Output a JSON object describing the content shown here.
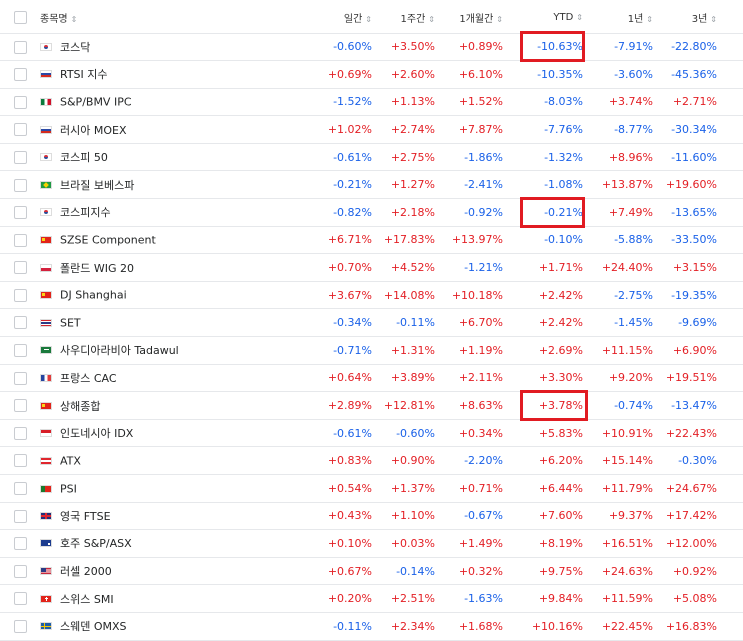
{
  "headers": {
    "name": "종목명",
    "d1": "일간",
    "w1": "1주간",
    "m1": "1개월간",
    "ytd": "YTD",
    "y1": "1년",
    "y3": "3년",
    "sort_icon": "sort-arrows-icon"
  },
  "rows": [
    {
      "flag": "kr",
      "name": "코스닥",
      "d1": "-0.60%",
      "w1": "+3.50%",
      "m1": "+0.89%",
      "ytd": "-10.63%",
      "y1": "-7.91%",
      "y3": "-22.80%"
    },
    {
      "flag": "ru",
      "name": "RTSI 지수",
      "d1": "+0.69%",
      "w1": "+2.60%",
      "m1": "+6.10%",
      "ytd": "-10.35%",
      "y1": "-3.60%",
      "y3": "-45.36%"
    },
    {
      "flag": "mx",
      "name": "S&P/BMV IPC",
      "d1": "-1.52%",
      "w1": "+1.13%",
      "m1": "+1.52%",
      "ytd": "-8.03%",
      "y1": "+3.74%",
      "y3": "+2.71%"
    },
    {
      "flag": "ru",
      "name": "러시아 MOEX",
      "d1": "+1.02%",
      "w1": "+2.74%",
      "m1": "+7.87%",
      "ytd": "-7.76%",
      "y1": "-8.77%",
      "y3": "-30.34%"
    },
    {
      "flag": "kr",
      "name": "코스피 50",
      "d1": "-0.61%",
      "w1": "+2.75%",
      "m1": "-1.86%",
      "ytd": "-1.32%",
      "y1": "+8.96%",
      "y3": "-11.60%"
    },
    {
      "flag": "br",
      "name": "브라질 보베스파",
      "d1": "-0.21%",
      "w1": "+1.27%",
      "m1": "-2.41%",
      "ytd": "-1.08%",
      "y1": "+13.87%",
      "y3": "+19.60%"
    },
    {
      "flag": "kr",
      "name": "코스피지수",
      "d1": "-0.82%",
      "w1": "+2.18%",
      "m1": "-0.92%",
      "ytd": "-0.21%",
      "y1": "+7.49%",
      "y3": "-13.65%"
    },
    {
      "flag": "cn",
      "name": "SZSE Component",
      "d1": "+6.71%",
      "w1": "+17.83%",
      "m1": "+13.97%",
      "ytd": "-0.10%",
      "y1": "-5.88%",
      "y3": "-33.50%"
    },
    {
      "flag": "pl",
      "name": "폴란드 WIG 20",
      "d1": "+0.70%",
      "w1": "+4.52%",
      "m1": "-1.21%",
      "ytd": "+1.71%",
      "y1": "+24.40%",
      "y3": "+3.15%"
    },
    {
      "flag": "cn",
      "name": "DJ Shanghai",
      "d1": "+3.67%",
      "w1": "+14.08%",
      "m1": "+10.18%",
      "ytd": "+2.42%",
      "y1": "-2.75%",
      "y3": "-19.35%"
    },
    {
      "flag": "th",
      "name": "SET",
      "d1": "-0.34%",
      "w1": "-0.11%",
      "m1": "+6.70%",
      "ytd": "+2.42%",
      "y1": "-1.45%",
      "y3": "-9.69%"
    },
    {
      "flag": "sa",
      "name": "사우디아라비아 Tadawul",
      "d1": "-0.71%",
      "w1": "+1.31%",
      "m1": "+1.19%",
      "ytd": "+2.69%",
      "y1": "+11.15%",
      "y3": "+6.90%"
    },
    {
      "flag": "fr",
      "name": "프랑스 CAC",
      "d1": "+0.64%",
      "w1": "+3.89%",
      "m1": "+2.11%",
      "ytd": "+3.30%",
      "y1": "+9.20%",
      "y3": "+19.51%"
    },
    {
      "flag": "cn",
      "name": "상해종합",
      "d1": "+2.89%",
      "w1": "+12.81%",
      "m1": "+8.63%",
      "ytd": "+3.78%",
      "y1": "-0.74%",
      "y3": "-13.47%"
    },
    {
      "flag": "id",
      "name": "인도네시아 IDX",
      "d1": "-0.61%",
      "w1": "-0.60%",
      "m1": "+0.34%",
      "ytd": "+5.83%",
      "y1": "+10.91%",
      "y3": "+22.43%"
    },
    {
      "flag": "at",
      "name": "ATX",
      "d1": "+0.83%",
      "w1": "+0.90%",
      "m1": "-2.20%",
      "ytd": "+6.20%",
      "y1": "+15.14%",
      "y3": "-0.30%"
    },
    {
      "flag": "pt",
      "name": "PSI",
      "d1": "+0.54%",
      "w1": "+1.37%",
      "m1": "+0.71%",
      "ytd": "+6.44%",
      "y1": "+11.79%",
      "y3": "+24.67%"
    },
    {
      "flag": "uk",
      "name": "영국 FTSE",
      "d1": "+0.43%",
      "w1": "+1.10%",
      "m1": "-0.67%",
      "ytd": "+7.60%",
      "y1": "+9.37%",
      "y3": "+17.42%"
    },
    {
      "flag": "au",
      "name": "호주 S&P/ASX",
      "d1": "+0.10%",
      "w1": "+0.03%",
      "m1": "+1.49%",
      "ytd": "+8.19%",
      "y1": "+16.51%",
      "y3": "+12.00%"
    },
    {
      "flag": "us",
      "name": "러셀 2000",
      "d1": "+0.67%",
      "w1": "-0.14%",
      "m1": "+0.32%",
      "ytd": "+9.75%",
      "y1": "+24.63%",
      "y3": "+0.92%"
    },
    {
      "flag": "ch",
      "name": "스위스 SMI",
      "d1": "+0.20%",
      "w1": "+2.51%",
      "m1": "-1.63%",
      "ytd": "+9.84%",
      "y1": "+11.59%",
      "y3": "+5.08%"
    },
    {
      "flag": "se",
      "name": "스웨덴 OMXS",
      "d1": "-0.11%",
      "w1": "+2.34%",
      "m1": "+1.68%",
      "ytd": "+10.16%",
      "y1": "+22.45%",
      "y3": "+16.83%"
    }
  ],
  "highlighted_rows": [
    0,
    6,
    13
  ],
  "colors": {
    "positive": "#e31e24",
    "negative": "#1a61e8",
    "highlight": "#e11b22"
  }
}
